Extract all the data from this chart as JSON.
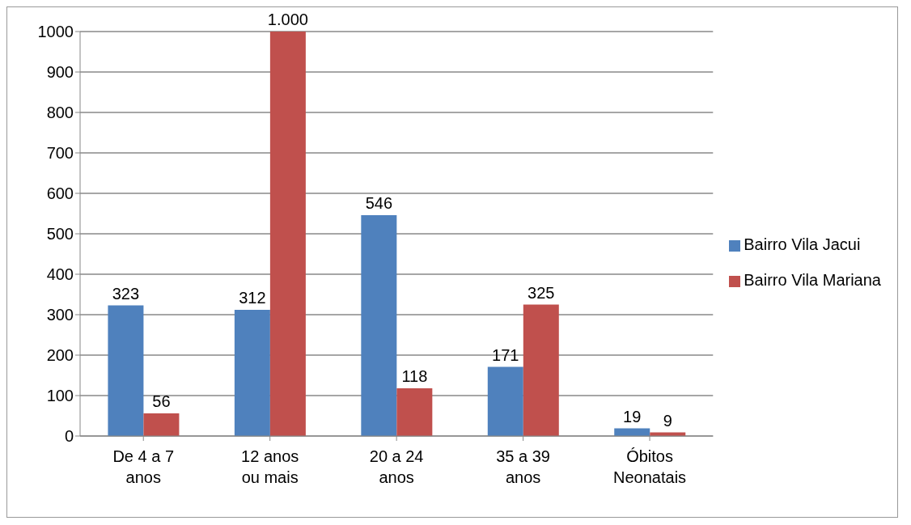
{
  "chart_data": {
    "type": "bar",
    "categories": [
      "De 4 a 7 anos",
      "12 anos ou mais",
      "20 a 24 anos",
      "35 a 39 anos",
      "Óbitos Neonatais"
    ],
    "series": [
      {
        "name": "Bairro Vila Jacui",
        "color": "#4f81bd",
        "values": [
          323,
          312,
          546,
          171,
          19
        ],
        "value_labels": [
          "323",
          "312",
          "546",
          "171",
          "19"
        ]
      },
      {
        "name": "Bairro Vila Mariana",
        "color": "#c0504d",
        "values": [
          56,
          1000,
          118,
          325,
          9
        ],
        "value_labels": [
          "56",
          "1.000",
          "118",
          "325",
          "9"
        ]
      }
    ],
    "ylim": [
      0,
      1000
    ],
    "yticks": [
      0,
      100,
      200,
      300,
      400,
      500,
      600,
      700,
      800,
      900,
      1000
    ],
    "grid": "y",
    "legend": "right"
  }
}
